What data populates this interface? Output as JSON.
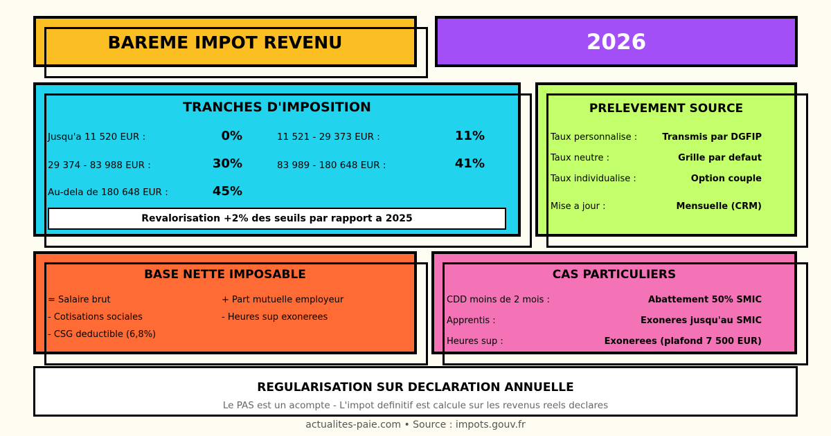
{
  "header": {
    "title": "BAREME IMPOT REVENU",
    "year": "2026"
  },
  "tranches": {
    "heading": "TRANCHES D'IMPOSITION",
    "rows": [
      {
        "label": "Jusqu'a 11 520 EUR :",
        "rate": "0%"
      },
      {
        "label": "11 521 - 29 373 EUR :",
        "rate": "11%"
      },
      {
        "label": "29 374 - 83 988 EUR :",
        "rate": "30%"
      },
      {
        "label": "83 989 - 180 648 EUR :",
        "rate": "41%"
      },
      {
        "label": "Au-dela de 180 648 EUR :",
        "rate": "45%"
      }
    ],
    "note": "Revalorisation +2% des seuils par rapport a 2025"
  },
  "pas": {
    "heading": "PRELEVEMENT SOURCE",
    "rows": [
      {
        "label": "Taux personnalise :",
        "value": "Transmis par DGFIP"
      },
      {
        "label": "Taux neutre :",
        "value": "Grille par defaut"
      },
      {
        "label": "Taux individualise :",
        "value": "Option couple"
      },
      {
        "label": "Mise a jour :",
        "value": "Mensuelle (CRM)"
      }
    ]
  },
  "base": {
    "heading": "BASE NETTE IMPOSABLE",
    "left": [
      "= Salaire brut",
      "- Cotisations sociales",
      "- CSG deductible (6,8%)"
    ],
    "right": [
      "+ Part mutuelle employeur",
      "- Heures sup exonerees"
    ]
  },
  "cas": {
    "heading": "CAS PARTICULIERS",
    "rows": [
      {
        "label": "CDD moins de 2 mois :",
        "value": "Abattement 50% SMIC"
      },
      {
        "label": "Apprentis :",
        "value": "Exoneres jusqu'au SMIC"
      },
      {
        "label": "Heures sup :",
        "value": "Exonerees (plafond 7 500 EUR)"
      }
    ]
  },
  "regul": {
    "heading": "REGULARISATION SUR DECLARATION ANNUELLE",
    "subtitle": "Le PAS est un acompte - L'impot definitif est calcule sur les revenus reels declares"
  },
  "footer": "actualites-paie.com • Source : impots.gouv.fr",
  "colors": {
    "title_bg": "#fbbf24",
    "year_bg": "#a24ff8",
    "tranches_bg": "#22d3ee",
    "pas_bg": "#c3ff6b",
    "base_bg": "#ff6b35",
    "cas_bg": "#f472b6",
    "page_bg": "#fffdf2"
  }
}
